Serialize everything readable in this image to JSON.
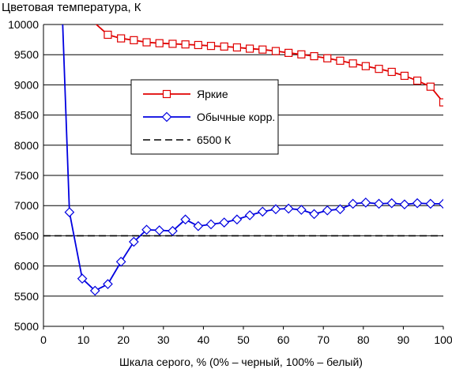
{
  "chart_data": {
    "type": "line",
    "title": "Цветовая температура, К",
    "xlabel": "Шкала серого, % (0% – черный, 100% – белый)",
    "ylabel": "",
    "xlim": [
      0,
      100
    ],
    "ylim": [
      5000,
      10000
    ],
    "x_ticks": [
      "0",
      "10",
      "20",
      "30",
      "40",
      "50",
      "60",
      "70",
      "80",
      "90",
      "100"
    ],
    "y_ticks": [
      "5000",
      "5500",
      "6000",
      "6500",
      "7000",
      "7500",
      "8000",
      "8500",
      "9000",
      "9500",
      "10000"
    ],
    "grid": "horizontal",
    "legend_position": "center",
    "series": [
      {
        "name": "Яркие",
        "color": "#e00000",
        "marker": "square",
        "x": [
          12.9,
          16.1,
          19.4,
          22.6,
          25.8,
          29.0,
          32.3,
          35.5,
          38.7,
          41.9,
          45.2,
          48.4,
          51.6,
          54.8,
          58.1,
          61.3,
          64.5,
          67.7,
          71.0,
          74.2,
          77.4,
          80.6,
          83.9,
          87.1,
          90.3,
          93.5,
          96.8,
          100
        ],
        "y": [
          10020,
          9830,
          9770,
          9740,
          9705,
          9690,
          9680,
          9670,
          9660,
          9645,
          9635,
          9620,
          9600,
          9585,
          9560,
          9530,
          9505,
          9475,
          9440,
          9400,
          9355,
          9310,
          9265,
          9215,
          9150,
          9070,
          8970,
          8710
        ],
        "marker_from_index": 1
      },
      {
        "name": "Обычные корр.",
        "color": "#0000e0",
        "marker": "diamond",
        "x": [
          4.8,
          6.5,
          9.7,
          12.9,
          16.1,
          19.4,
          22.6,
          25.8,
          29.0,
          32.3,
          35.5,
          38.7,
          41.9,
          45.2,
          48.4,
          51.6,
          54.8,
          58.1,
          61.3,
          64.5,
          67.7,
          71.0,
          74.2,
          77.4,
          80.6,
          83.9,
          87.1,
          90.3,
          93.5,
          96.8,
          100
        ],
        "y": [
          10020,
          6890,
          5790,
          5590,
          5700,
          6070,
          6400,
          6600,
          6590,
          6580,
          6770,
          6660,
          6690,
          6720,
          6770,
          6840,
          6900,
          6940,
          6950,
          6930,
          6860,
          6920,
          6940,
          7030,
          7050,
          7030,
          7040,
          7020,
          7040,
          7030,
          7030
        ],
        "marker_from_index": 1
      },
      {
        "name": "6500 К",
        "color": "#000000",
        "marker": "none",
        "dashed": true,
        "x": [
          0,
          100
        ],
        "y": [
          6500,
          6500
        ]
      }
    ]
  }
}
